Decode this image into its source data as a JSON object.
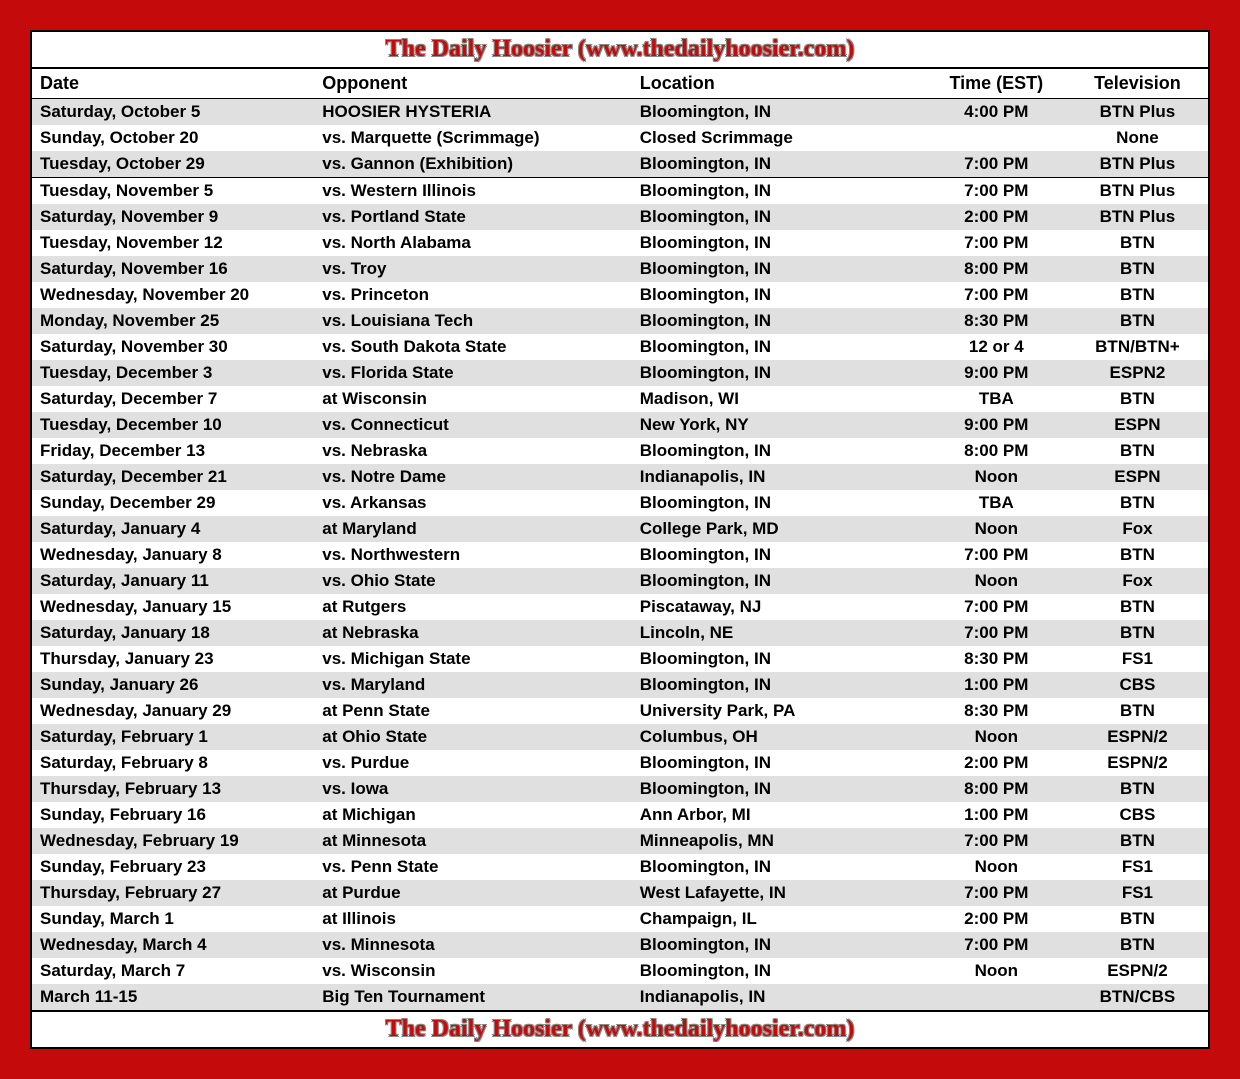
{
  "banner_text": "The Daily Hoosier (www.thedailyhoosier.com)",
  "columns": [
    "Date",
    "Opponent",
    "Location",
    "Time (EST)",
    "Television"
  ],
  "rows": [
    {
      "date": "Saturday, October 5",
      "opp": "HOOSIER HYSTERIA",
      "loc": "Bloomington, IN",
      "time": "4:00 PM",
      "tv": "BTN Plus",
      "section": false
    },
    {
      "date": "Sunday, October 20",
      "opp": "vs. Marquette (Scrimmage)",
      "loc": "Closed Scrimmage",
      "time": "",
      "tv": "None",
      "section": false
    },
    {
      "date": "Tuesday, October 29",
      "opp": "vs. Gannon (Exhibition)",
      "loc": "Bloomington, IN",
      "time": "7:00 PM",
      "tv": "BTN Plus",
      "section": false
    },
    {
      "date": "Tuesday, November 5",
      "opp": "vs. Western Illinois",
      "loc": "Bloomington, IN",
      "time": "7:00 PM",
      "tv": "BTN Plus",
      "section": true
    },
    {
      "date": "Saturday, November 9",
      "opp": "vs. Portland State",
      "loc": "Bloomington, IN",
      "time": "2:00 PM",
      "tv": "BTN Plus",
      "section": false
    },
    {
      "date": "Tuesday, November 12",
      "opp": "vs. North Alabama",
      "loc": "Bloomington, IN",
      "time": "7:00 PM",
      "tv": "BTN",
      "section": false
    },
    {
      "date": "Saturday, November 16",
      "opp": "vs. Troy",
      "loc": "Bloomington, IN",
      "time": "8:00 PM",
      "tv": "BTN",
      "section": false
    },
    {
      "date": "Wednesday, November 20",
      "opp": "vs. Princeton",
      "loc": "Bloomington, IN",
      "time": "7:00 PM",
      "tv": "BTN",
      "section": false
    },
    {
      "date": "Monday, November 25",
      "opp": "vs. Louisiana Tech",
      "loc": "Bloomington, IN",
      "time": "8:30 PM",
      "tv": "BTN",
      "section": false
    },
    {
      "date": "Saturday, November 30",
      "opp": "vs. South Dakota State",
      "loc": "Bloomington, IN",
      "time": "12 or 4",
      "tv": "BTN/BTN+",
      "section": false
    },
    {
      "date": "Tuesday, December 3",
      "opp": "vs. Florida State",
      "loc": "Bloomington, IN",
      "time": "9:00 PM",
      "tv": "ESPN2",
      "section": false
    },
    {
      "date": "Saturday, December 7",
      "opp": "at Wisconsin",
      "loc": "Madison, WI",
      "time": "TBA",
      "tv": "BTN",
      "section": false
    },
    {
      "date": "Tuesday, December 10",
      "opp": "vs. Connecticut",
      "loc": "New York, NY",
      "time": "9:00 PM",
      "tv": "ESPN",
      "section": false
    },
    {
      "date": "Friday, December 13",
      "opp": "vs. Nebraska",
      "loc": "Bloomington, IN",
      "time": "8:00 PM",
      "tv": "BTN",
      "section": false
    },
    {
      "date": "Saturday, December 21",
      "opp": "vs. Notre Dame",
      "loc": "Indianapolis, IN",
      "time": "Noon",
      "tv": "ESPN",
      "section": false
    },
    {
      "date": "Sunday, December 29",
      "opp": "vs. Arkansas",
      "loc": "Bloomington, IN",
      "time": "TBA",
      "tv": "BTN",
      "section": false
    },
    {
      "date": "Saturday, January 4",
      "opp": "at Maryland",
      "loc": "College Park, MD",
      "time": "Noon",
      "tv": "Fox",
      "section": false
    },
    {
      "date": "Wednesday, January 8",
      "opp": "vs. Northwestern",
      "loc": "Bloomington, IN",
      "time": "7:00 PM",
      "tv": "BTN",
      "section": false
    },
    {
      "date": "Saturday, January 11",
      "opp": "vs. Ohio State",
      "loc": "Bloomington, IN",
      "time": "Noon",
      "tv": "Fox",
      "section": false
    },
    {
      "date": "Wednesday, January 15",
      "opp": "at Rutgers",
      "loc": "Piscataway, NJ",
      "time": "7:00 PM",
      "tv": "BTN",
      "section": false
    },
    {
      "date": "Saturday, January 18",
      "opp": "at Nebraska",
      "loc": "Lincoln, NE",
      "time": "7:00 PM",
      "tv": "BTN",
      "section": false
    },
    {
      "date": "Thursday, January 23",
      "opp": "vs. Michigan State",
      "loc": "Bloomington, IN",
      "time": "8:30 PM",
      "tv": "FS1",
      "section": false
    },
    {
      "date": "Sunday, January 26",
      "opp": "vs. Maryland",
      "loc": "Bloomington, IN",
      "time": "1:00 PM",
      "tv": "CBS",
      "section": false
    },
    {
      "date": "Wednesday, January 29",
      "opp": "at Penn State",
      "loc": "University Park, PA",
      "time": "8:30 PM",
      "tv": "BTN",
      "section": false
    },
    {
      "date": "Saturday, February 1",
      "opp": "at Ohio State",
      "loc": "Columbus, OH",
      "time": "Noon",
      "tv": "ESPN/2",
      "section": false
    },
    {
      "date": "Saturday, February 8",
      "opp": "vs. Purdue",
      "loc": "Bloomington, IN",
      "time": "2:00 PM",
      "tv": "ESPN/2",
      "section": false
    },
    {
      "date": "Thursday, February 13",
      "opp": "vs. Iowa",
      "loc": "Bloomington, IN",
      "time": "8:00 PM",
      "tv": "BTN",
      "section": false
    },
    {
      "date": "Sunday, February 16",
      "opp": "at Michigan",
      "loc": "Ann Arbor, MI",
      "time": "1:00 PM",
      "tv": "CBS",
      "section": false
    },
    {
      "date": "Wednesday, February 19",
      "opp": "at Minnesota",
      "loc": "Minneapolis, MN",
      "time": "7:00 PM",
      "tv": "BTN",
      "section": false
    },
    {
      "date": "Sunday, February 23",
      "opp": "vs. Penn State",
      "loc": "Bloomington, IN",
      "time": "Noon",
      "tv": "FS1",
      "section": false
    },
    {
      "date": "Thursday, February 27",
      "opp": "at Purdue",
      "loc": "West Lafayette, IN",
      "time": "7:00 PM",
      "tv": "FS1",
      "section": false
    },
    {
      "date": "Sunday, March 1",
      "opp": "at Illinois",
      "loc": "Champaign, IL",
      "time": "2:00 PM",
      "tv": "BTN",
      "section": false
    },
    {
      "date": "Wednesday, March 4",
      "opp": "vs. Minnesota",
      "loc": "Bloomington, IN",
      "time": "7:00 PM",
      "tv": "BTN",
      "section": false
    },
    {
      "date": "Saturday, March 7",
      "opp": "vs. Wisconsin",
      "loc": "Bloomington, IN",
      "time": "Noon",
      "tv": "ESPN/2",
      "section": false
    },
    {
      "date": "March 11-15",
      "opp": "Big Ten Tournament",
      "loc": "Indianapolis, IN",
      "time": "",
      "tv": "BTN/CBS",
      "section": false
    }
  ]
}
